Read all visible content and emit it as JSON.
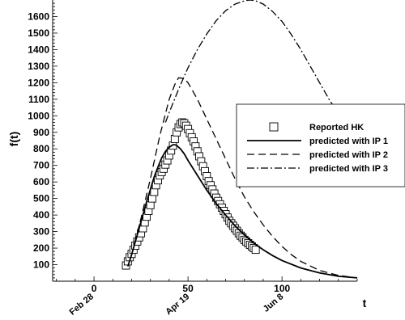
{
  "chart_data": {
    "type": "line",
    "title": "",
    "xlabel": "t",
    "ylabel": "f(t)",
    "xlim": [
      -22,
      140
    ],
    "ylim": [
      0,
      1700
    ],
    "x_ticks": [
      0,
      50,
      100
    ],
    "y_ticks": [
      100,
      200,
      300,
      400,
      500,
      600,
      700,
      800,
      900,
      1000,
      1100,
      1200,
      1300,
      1400,
      1500,
      1600
    ],
    "date_labels": [
      {
        "x": 0,
        "label": "Feb 28"
      },
      {
        "x": 51,
        "label": "Apr 19"
      },
      {
        "x": 101,
        "label": "Jun 8"
      }
    ],
    "legend_position": "right",
    "series": [
      {
        "name": "Reported HK",
        "style": "square-markers",
        "x": [
          17,
          18,
          19,
          20,
          21,
          22,
          23,
          24,
          25,
          26,
          27,
          28,
          29,
          30,
          31,
          32,
          33,
          34,
          35,
          36,
          37,
          38,
          39,
          40,
          41,
          42,
          43,
          44,
          45,
          46,
          47,
          48,
          49,
          50,
          51,
          52,
          53,
          54,
          55,
          56,
          57,
          58,
          59,
          60,
          61,
          62,
          63,
          64,
          65,
          66,
          67,
          68,
          69,
          70,
          71,
          72,
          73,
          74,
          75,
          76,
          77,
          78,
          79,
          80,
          81,
          82,
          83,
          84,
          85,
          86
        ],
        "values": [
          95,
          120,
          145,
          165,
          190,
          215,
          240,
          265,
          290,
          320,
          355,
          390,
          425,
          460,
          500,
          540,
          580,
          610,
          640,
          660,
          680,
          705,
          730,
          760,
          790,
          820,
          860,
          900,
          930,
          950,
          960,
          955,
          940,
          920,
          895,
          870,
          845,
          815,
          785,
          755,
          725,
          695,
          665,
          635,
          605,
          580,
          555,
          530,
          505,
          485,
          465,
          445,
          425,
          405,
          385,
          365,
          350,
          335,
          320,
          305,
          290,
          275,
          265,
          250,
          240,
          230,
          220,
          210,
          200,
          190
        ]
      },
      {
        "name": "predicted with IP 1",
        "style": "solid",
        "x": [
          18,
          20,
          22,
          24,
          26,
          28,
          30,
          32,
          34,
          36,
          38,
          40,
          42,
          43,
          44,
          46,
          48,
          50,
          55,
          60,
          65,
          70,
          75,
          80,
          85,
          90,
          95,
          100,
          110,
          120,
          130,
          140
        ],
        "values": [
          90,
          160,
          240,
          320,
          400,
          480,
          555,
          630,
          690,
          745,
          785,
          810,
          825,
          825,
          820,
          800,
          770,
          730,
          640,
          550,
          470,
          400,
          335,
          280,
          230,
          190,
          155,
          125,
          80,
          50,
          30,
          20
        ]
      },
      {
        "name": "predicted with IP 2",
        "style": "dashed",
        "x": [
          20,
          25,
          30,
          35,
          40,
          43,
          45,
          48,
          50,
          52,
          55,
          60,
          65,
          70,
          75,
          80,
          85,
          90,
          95,
          100,
          105,
          110,
          120,
          130,
          140
        ],
        "values": [
          160,
          380,
          620,
          880,
          1100,
          1190,
          1230,
          1225,
          1200,
          1160,
          1100,
          980,
          860,
          740,
          620,
          510,
          420,
          340,
          270,
          210,
          160,
          120,
          65,
          35,
          20
        ]
      },
      {
        "name": "predicted with IP 3",
        "style": "dash-dot",
        "x": [
          38,
          40,
          45,
          50,
          55,
          60,
          65,
          70,
          75,
          80,
          83,
          86,
          90,
          95,
          100,
          105,
          110,
          115,
          120,
          125,
          131
        ],
        "values": [
          960,
          1020,
          1160,
          1290,
          1400,
          1495,
          1575,
          1635,
          1675,
          1695,
          1700,
          1695,
          1675,
          1630,
          1570,
          1490,
          1400,
          1300,
          1200,
          1100,
          995
        ]
      }
    ]
  }
}
